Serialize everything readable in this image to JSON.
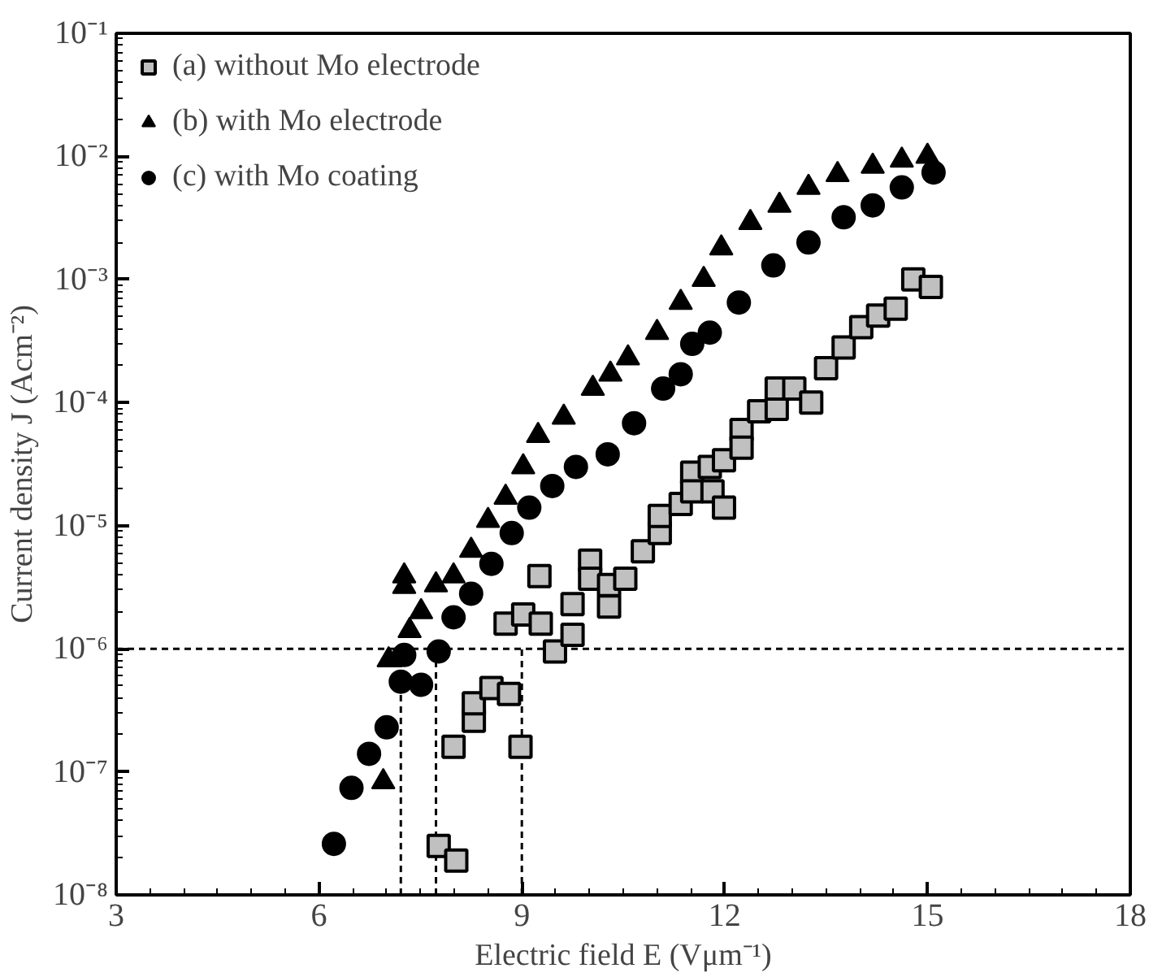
{
  "chart_data": {
    "type": "scatter",
    "xlabel": "Electric field E (Vμm⁻¹)",
    "ylabel": "Current density J (Acm⁻²)",
    "log": "y",
    "xlim": [
      3,
      18
    ],
    "xticks": [
      3,
      6,
      9,
      12,
      15,
      18
    ],
    "ylim": [
      1e-08,
      0.1
    ],
    "yticks": [
      {
        "value": 1e-08,
        "label": "10⁻⁸"
      },
      {
        "value": 1e-07,
        "label": "10⁻⁷"
      },
      {
        "value": 1e-06,
        "label": "10⁻⁶"
      },
      {
        "value": 1e-05,
        "label": "10⁻⁵"
      },
      {
        "value": 0.0001,
        "label": "10⁻⁴"
      },
      {
        "value": 0.001,
        "label": "10⁻³"
      },
      {
        "value": 0.01,
        "label": "10⁻²"
      },
      {
        "value": 0.1,
        "label": "10⁻¹"
      }
    ],
    "grid": false,
    "legend": "top left",
    "series": [
      {
        "name": "(a) without Mo electrode",
        "color": "#c0c0c0",
        "marker": "square",
        "x": [
          7.77,
          8.03,
          7.99,
          8.29,
          8.29,
          8.55,
          8.81,
          8.98,
          8.76,
          9.02,
          9.28,
          9.49,
          9.75,
          9.26,
          9.75,
          10.01,
          10.01,
          10.29,
          10.29,
          10.53,
          10.79,
          11.04,
          11.04,
          11.35,
          11.52,
          11.52,
          11.78,
          11.82,
          11.99,
          11.99,
          12.25,
          12.25,
          12.51,
          12.77,
          12.77,
          13.03,
          13.28,
          13.5,
          13.76,
          14.02,
          14.27,
          14.53,
          14.79,
          15.05
        ],
        "values": [
          2.5e-08,
          1.9e-08,
          1.6e-07,
          2.6e-07,
          3.6e-07,
          4.8e-07,
          4.3e-07,
          1.6e-07,
          1.6e-06,
          1.9e-06,
          1.6e-06,
          9.5e-07,
          1.3e-06,
          3.9e-06,
          2.3e-06,
          5.2e-06,
          3.7e-06,
          3.3e-06,
          2.2e-06,
          3.7e-06,
          6.2e-06,
          8.7e-06,
          1.2e-05,
          1.5e-05,
          2.7e-05,
          1.9e-05,
          3e-05,
          1.9e-05,
          1.4e-05,
          3.4e-05,
          6e-05,
          4.3e-05,
          8.5e-05,
          8.9e-05,
          0.00013,
          0.00013,
          0.0001,
          0.00019,
          0.00028,
          0.00041,
          0.00051,
          0.00058,
          0.001,
          0.00087
        ]
      },
      {
        "name": "(b) with Mo electrode",
        "color": "#000000",
        "marker": "triangle",
        "x": [
          6.95,
          7.03,
          7.26,
          7.26,
          7.34,
          7.51,
          7.73,
          7.99,
          8.25,
          8.5,
          8.76,
          9.02,
          9.24,
          9.62,
          10.05,
          10.31,
          10.57,
          11.0,
          11.35,
          11.69,
          11.95,
          12.38,
          12.81,
          13.24,
          13.67,
          14.19,
          14.62,
          15.0
        ],
        "values": [
          8.3e-08,
          8.1e-07,
          3.9e-06,
          3.2e-06,
          1.4e-06,
          2e-06,
          3.3e-06,
          3.9e-06,
          6.3e-06,
          1.1e-05,
          1.7e-05,
          3e-05,
          5.4e-05,
          7.6e-05,
          0.00013,
          0.00017,
          0.00023,
          0.00037,
          0.00065,
          0.001,
          0.0018,
          0.0029,
          0.004,
          0.0056,
          0.0071,
          0.0083,
          0.0093,
          0.01
        ]
      },
      {
        "name": "(c) with Mo coating",
        "color": "#000000",
        "marker": "circle",
        "x": [
          6.22,
          6.48,
          6.74,
          7.0,
          7.21,
          7.51,
          7.26,
          7.77,
          7.99,
          8.25,
          8.55,
          8.85,
          9.11,
          9.45,
          9.8,
          10.27,
          10.66,
          11.09,
          11.35,
          11.52,
          11.78,
          12.21,
          12.72,
          13.24,
          13.76,
          14.19,
          14.62,
          15.09
        ],
        "values": [
          2.6e-08,
          7.4e-08,
          1.4e-07,
          2.3e-07,
          5.4e-07,
          5.1e-07,
          8.9e-07,
          9.5e-07,
          1.8e-06,
          2.8e-06,
          4.9e-06,
          8.7e-06,
          1.4e-05,
          2.1e-05,
          3e-05,
          3.8e-05,
          6.8e-05,
          0.00013,
          0.00017,
          0.0003,
          0.00037,
          0.00065,
          0.0013,
          0.002,
          0.0032,
          0.004,
          0.0056,
          0.0074
        ]
      }
    ],
    "ref_lines": [
      {
        "axis": "y",
        "value": 1e-06,
        "line_style": "dashed",
        "color": "#000000"
      },
      {
        "axis": "x",
        "value": 7.21,
        "line_style": "dashed",
        "color": "#000000"
      },
      {
        "axis": "x",
        "value": 7.73,
        "line_style": "dashed",
        "color": "#000000"
      },
      {
        "axis": "x",
        "value": 9.0,
        "line_style": "dashed",
        "color": "#000000"
      }
    ]
  }
}
